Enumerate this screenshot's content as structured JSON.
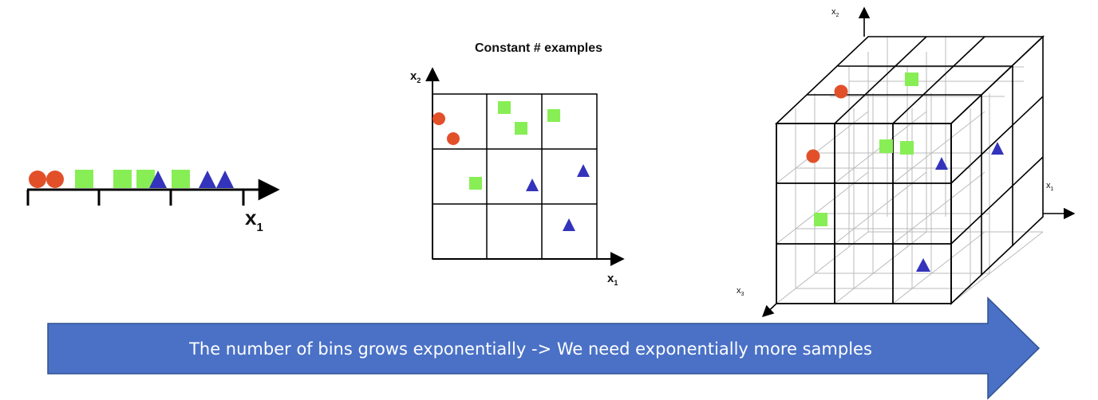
{
  "colors": {
    "circle": "#E2502A",
    "square": "#88EE55",
    "triangle": "#3333BB",
    "arrow": "#4A71C6",
    "line": "#000000"
  },
  "panel_1d": {
    "axis_label": "x",
    "axis_sub": "1"
  },
  "panel_2d": {
    "title": "Constant # examples",
    "x_label": "x",
    "x_sub": "1",
    "y_label": "x",
    "y_sub": "2"
  },
  "panel_3d": {
    "x1_label": "x",
    "x1_sub": "1",
    "x2_label": "x",
    "x2_sub": "2",
    "x3_label": "x",
    "x3_sub": "3"
  },
  "banner": {
    "text": "The number of bins grows exponentially -> We need exponentially more samples"
  }
}
